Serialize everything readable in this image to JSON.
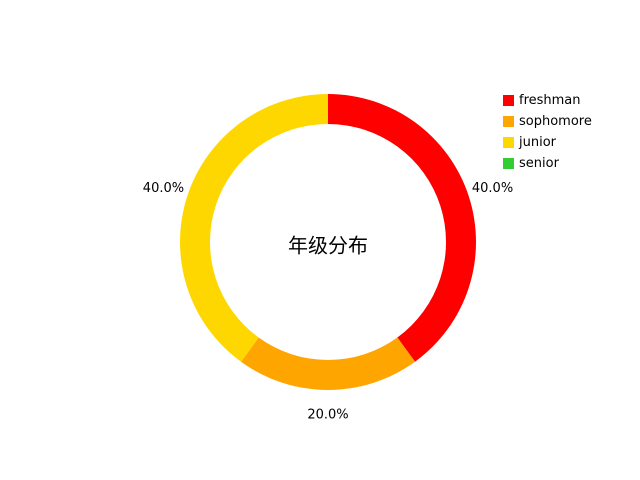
{
  "chart_data": {
    "type": "pie",
    "style": "donut",
    "center_label": "年级分布",
    "categories": [
      "freshman",
      "sophomore",
      "junior",
      "senior"
    ],
    "values": [
      40.0,
      20.0,
      40.0,
      0.0
    ],
    "value_labels": [
      "40.0%",
      "20.0%",
      "40.0%",
      ""
    ],
    "colors": [
      "#ff0000",
      "#ffa500",
      "#ffd700",
      "#32cd32"
    ],
    "start_angle": 90,
    "direction": "clockwise",
    "legend_position": "top-right"
  },
  "legend": {
    "items": [
      {
        "label": "freshman",
        "color": "#ff0000"
      },
      {
        "label": "sophomore",
        "color": "#ffa500"
      },
      {
        "label": "junior",
        "color": "#ffd700"
      },
      {
        "label": "senior",
        "color": "#32cd32"
      }
    ]
  }
}
